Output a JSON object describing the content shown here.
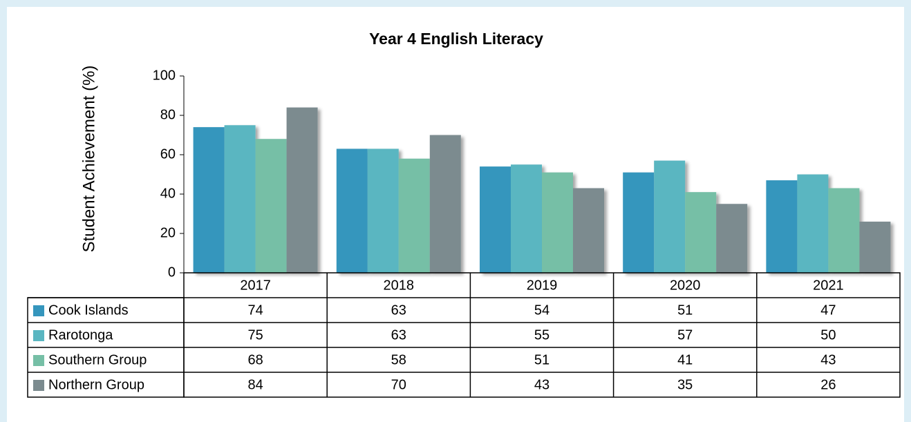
{
  "chart_data": {
    "type": "bar",
    "title": "Year 4 English Literacy",
    "y_label": "Student Achievement (%)",
    "categories": [
      "2017",
      "2018",
      "2019",
      "2020",
      "2021"
    ],
    "series": [
      {
        "name": "Cook Islands",
        "color": "#3596bd",
        "values": [
          74,
          63,
          54,
          51,
          47
        ]
      },
      {
        "name": "Rarotonga",
        "color": "#5ab6c1",
        "values": [
          75,
          63,
          55,
          57,
          50
        ]
      },
      {
        "name": "Southern Group",
        "color": "#76bfa6",
        "values": [
          68,
          58,
          51,
          41,
          43
        ]
      },
      {
        "name": "Northern Group",
        "color": "#7b8b8f",
        "values": [
          84,
          70,
          43,
          35,
          26
        ]
      }
    ],
    "ylim": [
      0,
      100
    ],
    "yticks": [
      0,
      20,
      40,
      60,
      80,
      100
    ],
    "grid": false,
    "data_table": true
  }
}
